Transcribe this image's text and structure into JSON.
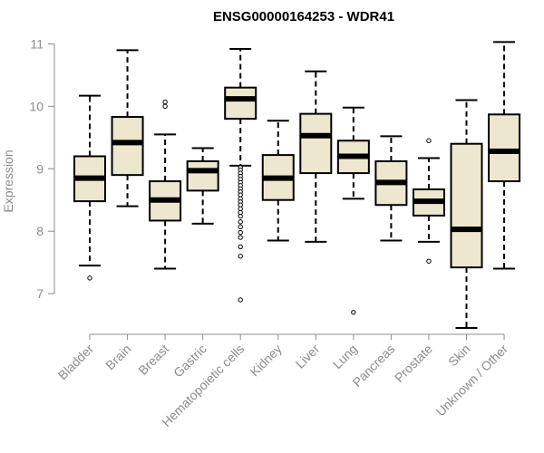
{
  "chart_data": {
    "type": "boxplot",
    "title": "ENSG00000164253 - WDR41",
    "xlabel": "",
    "ylabel": "Expression",
    "ylim": [
      6.45,
      11.05
    ],
    "yticks": [
      7,
      8,
      9,
      10,
      11
    ],
    "box_fill": "#ede7cf",
    "categories": [
      "Bladder",
      "Brain",
      "Breast",
      "Gastric",
      "Hematopoietic cells",
      "Kidney",
      "Liver",
      "Lung",
      "Pancreas",
      "Prostate",
      "Skin",
      "Unknown / Other"
    ],
    "boxes": [
      {
        "whislo": 7.45,
        "q1": 8.48,
        "med": 8.85,
        "q3": 9.2,
        "whishi": 10.17,
        "fliers": [
          7.25
        ]
      },
      {
        "whislo": 8.4,
        "q1": 8.9,
        "med": 9.42,
        "q3": 9.83,
        "whishi": 10.9,
        "fliers": []
      },
      {
        "whislo": 7.4,
        "q1": 8.17,
        "med": 8.5,
        "q3": 8.8,
        "whishi": 9.55,
        "fliers": [
          10.0,
          10.07
        ]
      },
      {
        "whislo": 8.12,
        "q1": 8.65,
        "med": 8.97,
        "q3": 9.12,
        "whishi": 9.33,
        "fliers": []
      },
      {
        "whislo": 9.05,
        "q1": 9.8,
        "med": 10.12,
        "q3": 10.3,
        "whishi": 10.92,
        "fliers": [
          9.02,
          8.98,
          8.93,
          8.88,
          8.83,
          8.78,
          8.73,
          8.68,
          8.63,
          8.58,
          8.52,
          8.47,
          8.42,
          8.36,
          8.3,
          8.24,
          8.15,
          8.07,
          7.98,
          7.9,
          7.75,
          7.6,
          6.9
        ]
      },
      {
        "whislo": 7.85,
        "q1": 8.5,
        "med": 8.85,
        "q3": 9.22,
        "whishi": 9.77,
        "fliers": []
      },
      {
        "whislo": 7.83,
        "q1": 8.93,
        "med": 9.53,
        "q3": 9.88,
        "whishi": 10.56,
        "fliers": []
      },
      {
        "whislo": 8.52,
        "q1": 8.93,
        "med": 9.2,
        "q3": 9.45,
        "whishi": 9.98,
        "fliers": [
          6.7
        ]
      },
      {
        "whislo": 7.85,
        "q1": 8.42,
        "med": 8.78,
        "q3": 9.12,
        "whishi": 9.52,
        "fliers": []
      },
      {
        "whislo": 7.83,
        "q1": 8.25,
        "med": 8.48,
        "q3": 8.67,
        "whishi": 9.17,
        "fliers": [
          9.45,
          7.52
        ]
      },
      {
        "whislo": 6.45,
        "q1": 7.42,
        "med": 8.03,
        "q3": 9.4,
        "whishi": 10.1,
        "fliers": []
      },
      {
        "whislo": 7.4,
        "q1": 8.8,
        "med": 9.28,
        "q3": 9.87,
        "whishi": 11.03,
        "fliers": []
      }
    ]
  }
}
